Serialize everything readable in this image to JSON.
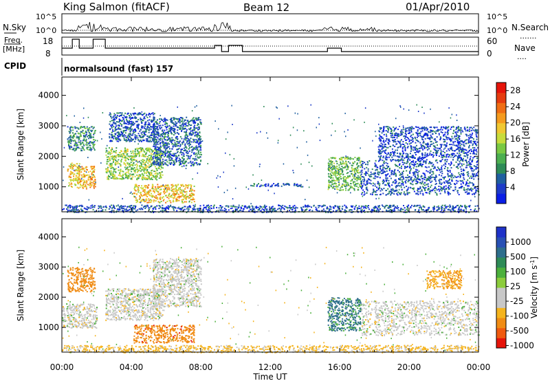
{
  "header": {
    "station": "King Salmon (fitACF)",
    "beam": "Beam 12",
    "date": "01/Apr/2010"
  },
  "strip": {
    "nsky_label": "N.Sky",
    "nsearch_label": "N.Search",
    "freq_label_1": "Freq.",
    "freq_label_2": "[MHz]",
    "nave_label": "Nave",
    "cpid_label": "CPID",
    "cpid_value": "normalsound (fast) 157",
    "nsky_ticks": [
      "10^5",
      "10^0"
    ],
    "nsearch_ticks": [
      "10^5",
      "10^0"
    ],
    "freq_ticks": [
      "18",
      "8"
    ],
    "nave_ticks": [
      "60",
      "0"
    ]
  },
  "colors": {
    "power": [
      "#0a1ee6",
      "#1e3cc8",
      "#1f5fa0",
      "#2e8b57",
      "#4caf50",
      "#7ac943",
      "#c8dc3c",
      "#f0c832",
      "#f59b1e",
      "#f06e14",
      "#e63c0f",
      "#e6140a"
    ],
    "velocity": [
      "#1e32c8",
      "#2850b4",
      "#2e6e8c",
      "#2e8b57",
      "#4cb03c",
      "#8ccc3c",
      "#c8c8c8",
      "#c8c8c8",
      "#f5b41e",
      "#f08c14",
      "#f05a0f",
      "#e6140a"
    ]
  },
  "chart_data": [
    {
      "type": "heatmap",
      "panel": "power",
      "title": "",
      "xlabel": "Time UT",
      "ylabel": "Slant Range [km]",
      "xlim": [
        "00:00",
        "24:00"
      ],
      "xticks": [
        "00:00",
        "04:00",
        "08:00",
        "12:00",
        "16:00",
        "20:00",
        "00:00"
      ],
      "ylim": [
        180,
        4600
      ],
      "yticks": [
        1000,
        2000,
        3000,
        4000
      ],
      "colorbar": {
        "label": "Power [dB]",
        "range": [
          0,
          30
        ],
        "ticks": [
          4,
          8,
          12,
          16,
          20,
          24,
          28
        ]
      },
      "regions": [
        {
          "t": [
            0.3,
            1.0
          ],
          "r": [
            1000,
            1800
          ],
          "value": 18
        },
        {
          "t": [
            0.9,
            1.9
          ],
          "r": [
            950,
            1700
          ],
          "value": 20
        },
        {
          "t": [
            0.3,
            1.9
          ],
          "r": [
            2200,
            3000
          ],
          "value": 9
        },
        {
          "t": [
            2.5,
            5.8
          ],
          "r": [
            1250,
            2300
          ],
          "value": 14
        },
        {
          "t": [
            4.1,
            7.6
          ],
          "r": [
            500,
            1100
          ],
          "value": 19
        },
        {
          "t": [
            5.2,
            8.0
          ],
          "r": [
            1700,
            3300
          ],
          "value": 6
        },
        {
          "t": [
            2.7,
            5.3
          ],
          "r": [
            2500,
            3450
          ],
          "value": 5
        },
        {
          "t": [
            15.3,
            17.2
          ],
          "r": [
            900,
            2000
          ],
          "value": 12
        },
        {
          "t": [
            17.2,
            24.0
          ],
          "r": [
            750,
            1900
          ],
          "value": 5
        },
        {
          "t": [
            18.2,
            23.9
          ],
          "r": [
            1900,
            3000
          ],
          "value": 4
        },
        {
          "t": [
            10.8,
            13.9
          ],
          "r": [
            1020,
            1130
          ],
          "value": 6
        },
        {
          "t": [
            0.0,
            24.0
          ],
          "r": [
            180,
            420
          ],
          "value": 5
        }
      ]
    },
    {
      "type": "heatmap",
      "panel": "velocity",
      "title": "",
      "xlabel": "Time UT",
      "ylabel": "Slant Range [km]",
      "xlim": [
        "00:00",
        "24:00"
      ],
      "xticks": [
        "00:00",
        "04:00",
        "08:00",
        "12:00",
        "16:00",
        "20:00",
        "00:00"
      ],
      "ylim": [
        180,
        4600
      ],
      "yticks": [
        1000,
        2000,
        3000,
        4000
      ],
      "colorbar": {
        "label": "Velocity [m s-1]",
        "ticks": [
          1000,
          500,
          100,
          25,
          -25,
          -100,
          -500,
          -1000
        ]
      },
      "regions": [
        {
          "t": [
            0.0,
            2.0
          ],
          "r": [
            1000,
            1800
          ],
          "value": 0
        },
        {
          "t": [
            0.3,
            1.9
          ],
          "r": [
            2200,
            3000
          ],
          "value": -300
        },
        {
          "t": [
            2.5,
            5.8
          ],
          "r": [
            1250,
            2300
          ],
          "value": 0
        },
        {
          "t": [
            4.1,
            7.6
          ],
          "r": [
            500,
            1100
          ],
          "value": -350
        },
        {
          "t": [
            5.2,
            8.0
          ],
          "r": [
            1700,
            3300
          ],
          "value": 0
        },
        {
          "t": [
            15.3,
            17.2
          ],
          "r": [
            900,
            2000
          ],
          "value": 150
        },
        {
          "t": [
            17.2,
            24.0
          ],
          "r": [
            750,
            1900
          ],
          "value": 0
        },
        {
          "t": [
            21.0,
            23.0
          ],
          "r": [
            2300,
            2900
          ],
          "value": -100
        },
        {
          "t": [
            0.0,
            24.0
          ],
          "r": [
            180,
            420
          ],
          "value": -50
        }
      ]
    }
  ]
}
